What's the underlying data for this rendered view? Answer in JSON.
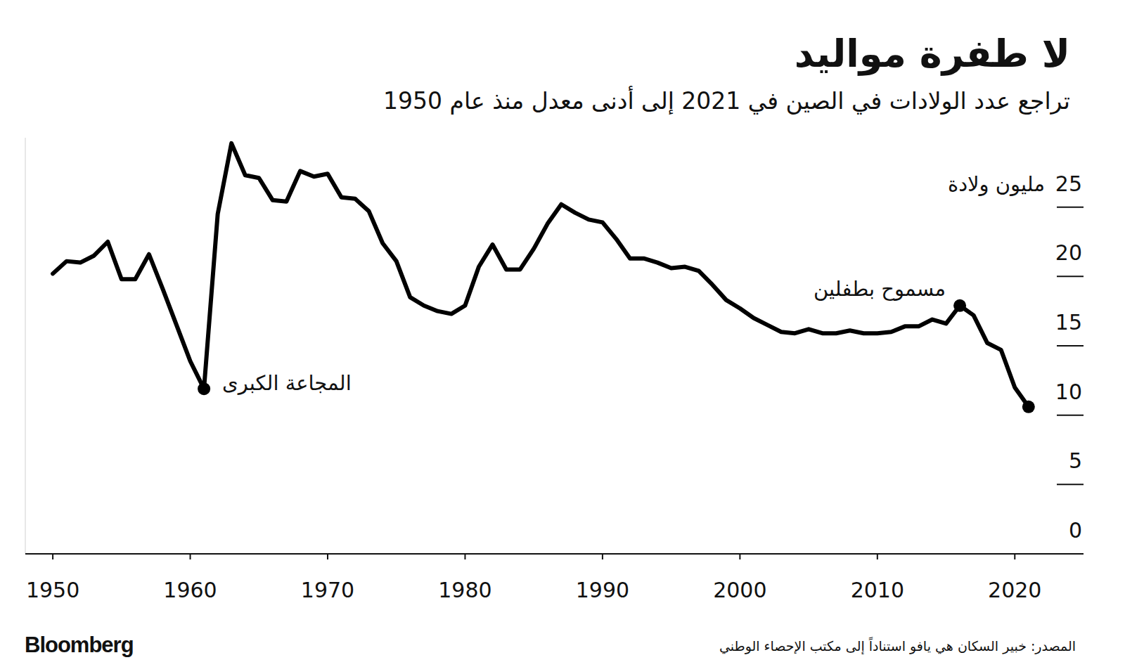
{
  "chart_data": {
    "type": "line",
    "title": "لا طفرة مواليد",
    "subtitle": "تراجع عدد الولادات في الصين في 2021 إلى أدنى معدل منذ عام 1950",
    "y_label": "مليون ولادة",
    "source": "المصدر: خبير السكان هي يافو استناداً إلى مكتب الإحصاء الوطني",
    "credit": "Bloomberg",
    "color": "#000000",
    "x": [
      1950,
      1951,
      1952,
      1953,
      1954,
      1955,
      1956,
      1957,
      1958,
      1959,
      1960,
      1961,
      1962,
      1963,
      1964,
      1965,
      1966,
      1967,
      1968,
      1969,
      1970,
      1971,
      1972,
      1973,
      1974,
      1975,
      1976,
      1977,
      1978,
      1979,
      1980,
      1981,
      1982,
      1983,
      1984,
      1985,
      1986,
      1987,
      1988,
      1989,
      1990,
      1991,
      1992,
      1993,
      1994,
      1995,
      1996,
      1997,
      1998,
      1999,
      2000,
      2001,
      2002,
      2003,
      2004,
      2005,
      2006,
      2007,
      2008,
      2009,
      2010,
      2011,
      2012,
      2013,
      2014,
      2015,
      2016,
      2017,
      2018,
      2019,
      2020,
      2021
    ],
    "values": [
      20.2,
      21.1,
      21.0,
      21.5,
      22.5,
      19.8,
      19.8,
      21.6,
      19.1,
      16.5,
      13.9,
      11.9,
      24.5,
      29.6,
      27.3,
      27.1,
      25.5,
      25.4,
      27.6,
      27.2,
      27.4,
      25.7,
      25.6,
      24.7,
      22.4,
      21.1,
      18.5,
      17.9,
      17.5,
      17.3,
      17.9,
      20.7,
      22.3,
      20.5,
      20.5,
      22.0,
      23.8,
      25.2,
      24.6,
      24.1,
      23.9,
      22.7,
      21.3,
      21.3,
      21.0,
      20.6,
      20.7,
      20.4,
      19.4,
      18.3,
      17.7,
      17.0,
      16.5,
      16.0,
      15.9,
      16.2,
      15.9,
      15.9,
      16.1,
      15.9,
      15.9,
      16.0,
      16.4,
      16.4,
      16.9,
      16.6,
      17.9,
      17.2,
      15.2,
      14.7,
      12.0,
      10.6
    ],
    "xlim": [
      1948,
      2025
    ],
    "xticks": [
      1950,
      1960,
      1970,
      1980,
      1990,
      2000,
      2010,
      2020
    ],
    "ylim": [
      0,
      30
    ],
    "yticks": [
      0,
      5,
      10,
      15,
      20,
      25
    ],
    "annotations": [
      {
        "text": "المجاعة الكبرى",
        "x": 1961
      },
      {
        "text": "مسموح بطفلين",
        "x": 2016
      },
      {
        "x": 2021
      }
    ]
  }
}
